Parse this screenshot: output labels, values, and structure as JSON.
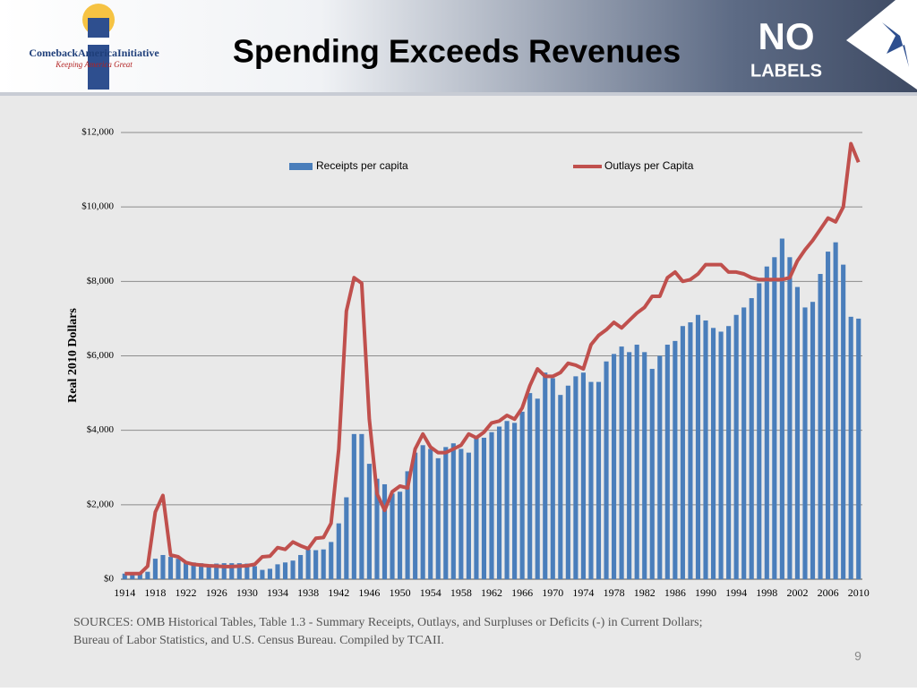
{
  "header": {
    "title": "Spending Exceeds Revenues",
    "logo_left": {
      "name": "ComebackAmericaInitiative",
      "tagline": "Keeping America Great"
    },
    "logo_right": {
      "top": "NO",
      "bottom": "LABELS"
    }
  },
  "chart_data": {
    "type": "bar_line",
    "ylabel": "Real 2010 Dollars",
    "categories": [
      "1914",
      null,
      null,
      null,
      "1918",
      null,
      null,
      null,
      "1922",
      null,
      null,
      null,
      "1926",
      null,
      null,
      null,
      "1930",
      null,
      null,
      null,
      "1934",
      null,
      null,
      null,
      "1938",
      null,
      null,
      null,
      "1942",
      null,
      null,
      null,
      "1946",
      null,
      null,
      null,
      "1950",
      null,
      null,
      null,
      "1954",
      null,
      null,
      null,
      "1958",
      null,
      null,
      null,
      "1962",
      null,
      null,
      null,
      "1966",
      null,
      null,
      null,
      "1970",
      null,
      null,
      null,
      "1974",
      null,
      null,
      null,
      "1978",
      null,
      null,
      null,
      "1982",
      null,
      null,
      null,
      "1986",
      null,
      null,
      null,
      "1990",
      null,
      null,
      null,
      "1994",
      null,
      null,
      null,
      "1998",
      null,
      null,
      null,
      "2002",
      null,
      null,
      null,
      "2006",
      null,
      null,
      null,
      "2010"
    ],
    "series": [
      {
        "name": "Receipts per capita",
        "kind": "bar",
        "color": "#4a7ebb",
        "values": [
          150,
          150,
          150,
          200,
          550,
          650,
          600,
          550,
          450,
          450,
          430,
          400,
          420,
          430,
          430,
          430,
          420,
          350,
          250,
          280,
          400,
          450,
          500,
          650,
          800,
          780,
          800,
          1000,
          1500,
          2200,
          3900,
          3900,
          3100,
          2700,
          2550,
          2300,
          2350,
          2900,
          3400,
          3600,
          3500,
          3250,
          3550,
          3650,
          3500,
          3400,
          3800,
          3800,
          3950,
          4100,
          4250,
          4200,
          4500,
          5000,
          4850,
          5550,
          5400,
          4950,
          5200,
          5450,
          5550,
          5300,
          5300,
          5850,
          6050,
          6250,
          6100,
          6300,
          6100,
          5650,
          6000,
          6300,
          6400,
          6800,
          6900,
          7100,
          6950,
          6750,
          6650,
          6800,
          7100,
          7300,
          7550,
          7950,
          8400,
          8650,
          9150,
          8650,
          7850,
          7300,
          7450,
          8200,
          8800,
          9050,
          8450,
          7050,
          7000
        ]
      },
      {
        "name": "Outlays per Capita",
        "kind": "line",
        "color": "#c0504d",
        "values": [
          150,
          150,
          150,
          350,
          1800,
          2250,
          650,
          600,
          450,
          400,
          380,
          360,
          350,
          340,
          340,
          350,
          360,
          400,
          600,
          620,
          850,
          800,
          1000,
          900,
          820,
          1100,
          1120,
          1500,
          3500,
          7200,
          8100,
          7950,
          4300,
          2300,
          1850,
          2350,
          2500,
          2450,
          3500,
          3900,
          3550,
          3400,
          3400,
          3500,
          3600,
          3900,
          3800,
          3950,
          4200,
          4250,
          4400,
          4300,
          4600,
          5200,
          5650,
          5450,
          5450,
          5550,
          5800,
          5750,
          5650,
          6300,
          6550,
          6700,
          6900,
          6750,
          6950,
          7150,
          7300,
          7600,
          7600,
          8100,
          8250,
          8000,
          8050,
          8200,
          8450,
          8450,
          8450,
          8250,
          8250,
          8200,
          8100,
          8050,
          8050,
          8050,
          8050,
          8100,
          8550,
          8850,
          9100,
          9400,
          9700,
          9600,
          10000,
          11700,
          11200
        ]
      }
    ],
    "ylim": [
      0,
      12000
    ],
    "yticks": [
      {
        "value": 0,
        "label": "$0"
      },
      {
        "value": 2000,
        "label": "$2,000"
      },
      {
        "value": 4000,
        "label": "$4,000"
      },
      {
        "value": 6000,
        "label": "$6,000"
      },
      {
        "value": 8000,
        "label": "$8,000"
      },
      {
        "value": 10000,
        "label": "$10,000"
      },
      {
        "value": 12000,
        "label": "$12,000"
      }
    ],
    "grid": true
  },
  "footer": {
    "sources": [
      "SOURCES:  OMB Historical Tables, Table 1.3 - Summary Receipts, Outlays, and Surpluses or Deficits (-) in Current Dollars;",
      "Bureau of Labor Statistics,  and U.S. Census Bureau. Compiled by TCAII."
    ],
    "page": "9"
  }
}
